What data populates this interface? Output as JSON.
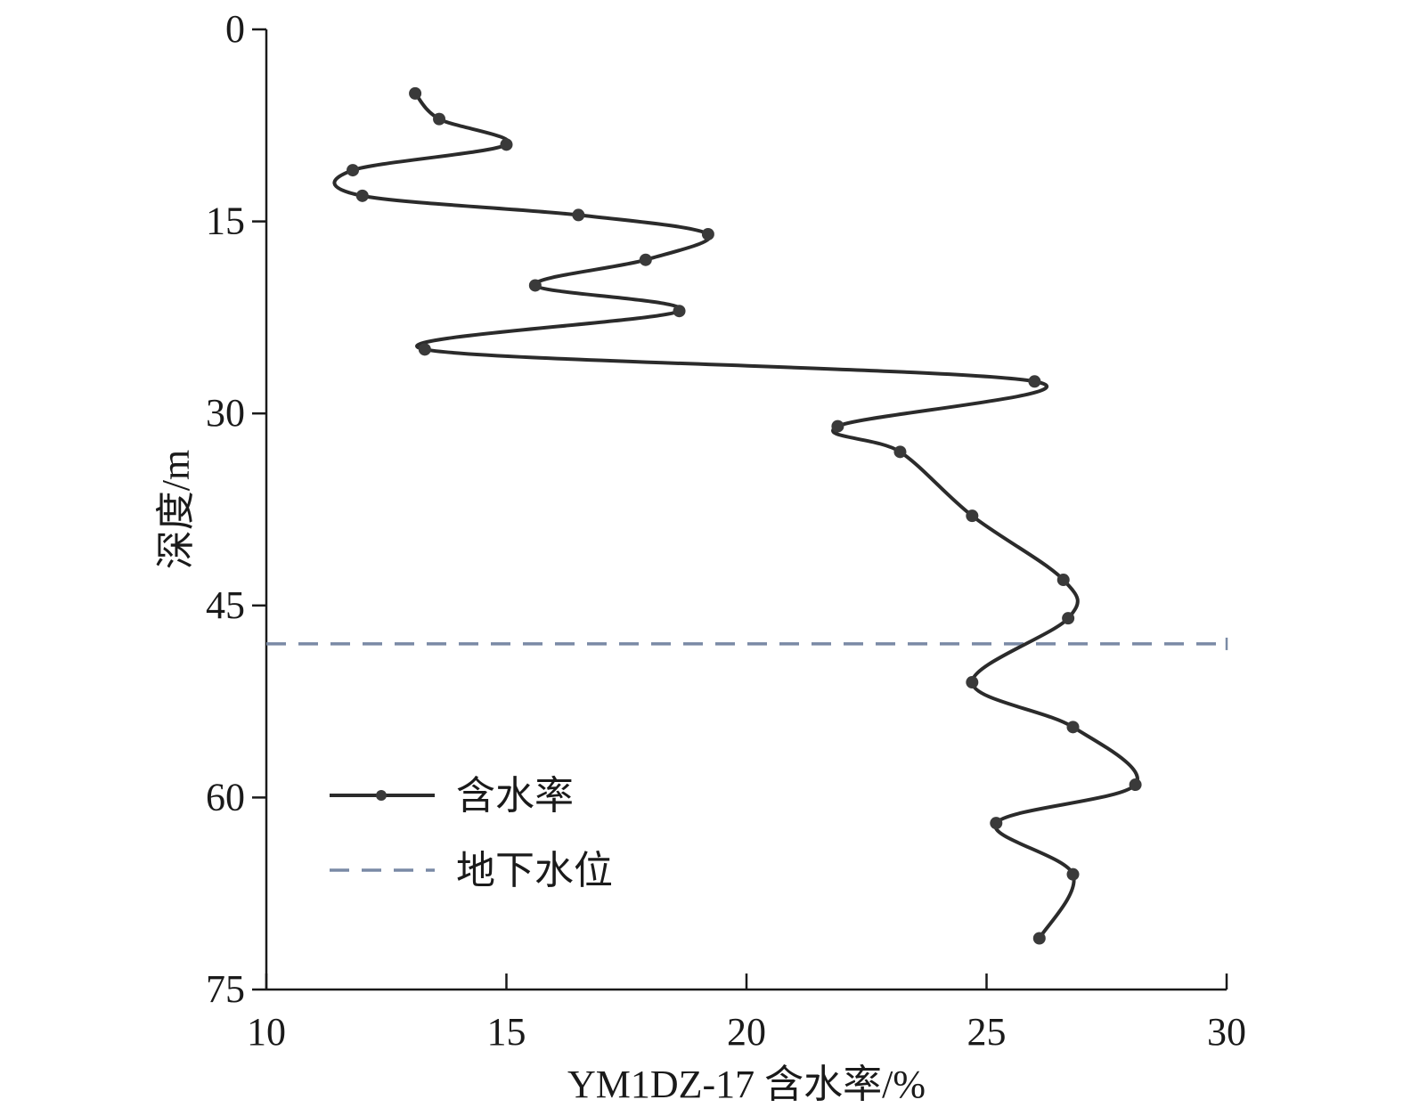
{
  "chart_data": {
    "type": "line",
    "xlabel": "YM1DZ-17 含水率/%",
    "ylabel": "深度/m",
    "xlim": [
      10,
      30
    ],
    "ylim": [
      0,
      75
    ],
    "y_inverted": true,
    "x_ticks": [
      10,
      15,
      20,
      25,
      30
    ],
    "y_ticks": [
      0,
      15,
      30,
      45,
      60,
      75
    ],
    "legend_position": "bottom-left",
    "series": [
      {
        "name": "含水率",
        "style": "solid line with dot markers",
        "color": "#2b2b2b",
        "points": [
          {
            "x": 13.1,
            "depth": 5
          },
          {
            "x": 13.6,
            "depth": 7
          },
          {
            "x": 15.0,
            "depth": 9
          },
          {
            "x": 11.8,
            "depth": 11
          },
          {
            "x": 12.0,
            "depth": 13
          },
          {
            "x": 16.5,
            "depth": 14.5
          },
          {
            "x": 19.2,
            "depth": 16
          },
          {
            "x": 17.9,
            "depth": 18
          },
          {
            "x": 15.6,
            "depth": 20
          },
          {
            "x": 18.6,
            "depth": 22
          },
          {
            "x": 13.3,
            "depth": 25
          },
          {
            "x": 26.0,
            "depth": 27.5
          },
          {
            "x": 21.9,
            "depth": 31
          },
          {
            "x": 23.2,
            "depth": 33
          },
          {
            "x": 24.7,
            "depth": 38
          },
          {
            "x": 26.6,
            "depth": 43
          },
          {
            "x": 26.7,
            "depth": 46
          },
          {
            "x": 24.7,
            "depth": 51
          },
          {
            "x": 26.8,
            "depth": 54.5
          },
          {
            "x": 28.1,
            "depth": 59
          },
          {
            "x": 25.2,
            "depth": 62
          },
          {
            "x": 26.8,
            "depth": 66
          },
          {
            "x": 26.1,
            "depth": 71
          }
        ]
      },
      {
        "name": "地下水位",
        "style": "dashed horizontal line",
        "color": "#7a8aa5",
        "depth": 48
      }
    ]
  }
}
